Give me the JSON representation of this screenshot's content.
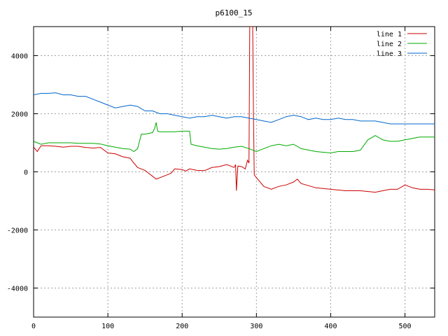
{
  "chart_data": {
    "type": "line",
    "title": "p6100_15",
    "xlabel": "",
    "ylabel": "",
    "xlim": [
      0,
      540
    ],
    "ylim": [
      -5000,
      5000
    ],
    "grid": true,
    "legend_position": "top-right",
    "x_ticks": [
      0,
      100,
      200,
      300,
      400,
      500
    ],
    "y_ticks": [
      -4000,
      -2000,
      0,
      2000,
      4000
    ],
    "x_tick_labels": [
      "0",
      "100",
      "200",
      "300",
      "400",
      "500"
    ],
    "y_tick_labels": [
      "-4000",
      "-2000",
      "0",
      "2000",
      "4000"
    ],
    "series": [
      {
        "name": "line 1",
        "color": "#cc0000",
        "points": [
          [
            0,
            850
          ],
          [
            5,
            700
          ],
          [
            10,
            900
          ],
          [
            20,
            900
          ],
          [
            30,
            880
          ],
          [
            40,
            850
          ],
          [
            50,
            880
          ],
          [
            60,
            880
          ],
          [
            70,
            840
          ],
          [
            80,
            820
          ],
          [
            90,
            840
          ],
          [
            100,
            650
          ],
          [
            110,
            620
          ],
          [
            120,
            520
          ],
          [
            130,
            470
          ],
          [
            135,
            300
          ],
          [
            140,
            150
          ],
          [
            150,
            50
          ],
          [
            155,
            -50
          ],
          [
            160,
            -150
          ],
          [
            165,
            -250
          ],
          [
            170,
            -200
          ],
          [
            180,
            -100
          ],
          [
            185,
            -50
          ],
          [
            190,
            100
          ],
          [
            200,
            80
          ],
          [
            205,
            30
          ],
          [
            210,
            100
          ],
          [
            220,
            50
          ],
          [
            230,
            40
          ],
          [
            240,
            150
          ],
          [
            250,
            180
          ],
          [
            260,
            250
          ],
          [
            265,
            200
          ],
          [
            270,
            150
          ],
          [
            272,
            250
          ],
          [
            273,
            -650
          ],
          [
            275,
            200
          ],
          [
            280,
            180
          ],
          [
            285,
            100
          ],
          [
            288,
            400
          ],
          [
            290,
            300
          ],
          [
            291,
            5000
          ],
          [
            293,
            5000
          ],
          [
            295,
            5000
          ],
          [
            296,
            2000
          ],
          [
            297,
            -100
          ],
          [
            300,
            -200
          ],
          [
            310,
            -500
          ],
          [
            320,
            -600
          ],
          [
            330,
            -500
          ],
          [
            340,
            -450
          ],
          [
            350,
            -350
          ],
          [
            355,
            -250
          ],
          [
            360,
            -400
          ],
          [
            380,
            -550
          ],
          [
            400,
            -600
          ],
          [
            420,
            -650
          ],
          [
            440,
            -650
          ],
          [
            460,
            -700
          ],
          [
            470,
            -650
          ],
          [
            480,
            -600
          ],
          [
            490,
            -600
          ],
          [
            500,
            -450
          ],
          [
            510,
            -550
          ],
          [
            520,
            -600
          ],
          [
            530,
            -600
          ],
          [
            540,
            -620
          ]
        ]
      },
      {
        "name": "line 2",
        "color": "#00aa00",
        "points": [
          [
            0,
            1050
          ],
          [
            10,
            950
          ],
          [
            20,
            1000
          ],
          [
            30,
            1000
          ],
          [
            40,
            1000
          ],
          [
            50,
            1000
          ],
          [
            60,
            980
          ],
          [
            70,
            980
          ],
          [
            80,
            980
          ],
          [
            90,
            960
          ],
          [
            100,
            900
          ],
          [
            110,
            850
          ],
          [
            120,
            800
          ],
          [
            130,
            780
          ],
          [
            135,
            700
          ],
          [
            140,
            800
          ],
          [
            145,
            1300
          ],
          [
            150,
            1300
          ],
          [
            160,
            1350
          ],
          [
            163,
            1500
          ],
          [
            165,
            1700
          ],
          [
            167,
            1400
          ],
          [
            170,
            1380
          ],
          [
            180,
            1380
          ],
          [
            190,
            1380
          ],
          [
            200,
            1400
          ],
          [
            210,
            1400
          ],
          [
            212,
            950
          ],
          [
            220,
            900
          ],
          [
            230,
            850
          ],
          [
            240,
            800
          ],
          [
            250,
            780
          ],
          [
            260,
            800
          ],
          [
            270,
            850
          ],
          [
            280,
            880
          ],
          [
            290,
            800
          ],
          [
            300,
            700
          ],
          [
            310,
            800
          ],
          [
            320,
            900
          ],
          [
            330,
            950
          ],
          [
            340,
            900
          ],
          [
            350,
            950
          ],
          [
            360,
            800
          ],
          [
            380,
            700
          ],
          [
            400,
            650
          ],
          [
            410,
            700
          ],
          [
            420,
            700
          ],
          [
            430,
            700
          ],
          [
            440,
            750
          ],
          [
            450,
            1100
          ],
          [
            460,
            1250
          ],
          [
            470,
            1100
          ],
          [
            480,
            1050
          ],
          [
            490,
            1050
          ],
          [
            500,
            1100
          ],
          [
            510,
            1150
          ],
          [
            520,
            1200
          ],
          [
            530,
            1200
          ],
          [
            540,
            1200
          ]
        ]
      },
      {
        "name": "line 3",
        "color": "#0066cc",
        "points": [
          [
            0,
            2650
          ],
          [
            10,
            2700
          ],
          [
            20,
            2700
          ],
          [
            30,
            2720
          ],
          [
            40,
            2650
          ],
          [
            50,
            2650
          ],
          [
            60,
            2600
          ],
          [
            70,
            2600
          ],
          [
            80,
            2500
          ],
          [
            90,
            2400
          ],
          [
            100,
            2300
          ],
          [
            110,
            2200
          ],
          [
            120,
            2250
          ],
          [
            130,
            2300
          ],
          [
            140,
            2250
          ],
          [
            150,
            2100
          ],
          [
            160,
            2100
          ],
          [
            170,
            2000
          ],
          [
            180,
            2000
          ],
          [
            190,
            1950
          ],
          [
            200,
            1900
          ],
          [
            210,
            1850
          ],
          [
            220,
            1900
          ],
          [
            230,
            1900
          ],
          [
            240,
            1950
          ],
          [
            250,
            1900
          ],
          [
            260,
            1850
          ],
          [
            270,
            1900
          ],
          [
            280,
            1900
          ],
          [
            290,
            1850
          ],
          [
            300,
            1800
          ],
          [
            310,
            1750
          ],
          [
            320,
            1700
          ],
          [
            330,
            1800
          ],
          [
            340,
            1900
          ],
          [
            350,
            1950
          ],
          [
            360,
            1900
          ],
          [
            370,
            1800
          ],
          [
            380,
            1850
          ],
          [
            390,
            1800
          ],
          [
            400,
            1800
          ],
          [
            410,
            1850
          ],
          [
            420,
            1800
          ],
          [
            430,
            1800
          ],
          [
            440,
            1750
          ],
          [
            450,
            1750
          ],
          [
            460,
            1750
          ],
          [
            470,
            1700
          ],
          [
            480,
            1650
          ],
          [
            490,
            1650
          ],
          [
            500,
            1650
          ],
          [
            510,
            1650
          ],
          [
            520,
            1650
          ],
          [
            530,
            1650
          ],
          [
            540,
            1650
          ]
        ]
      }
    ]
  }
}
